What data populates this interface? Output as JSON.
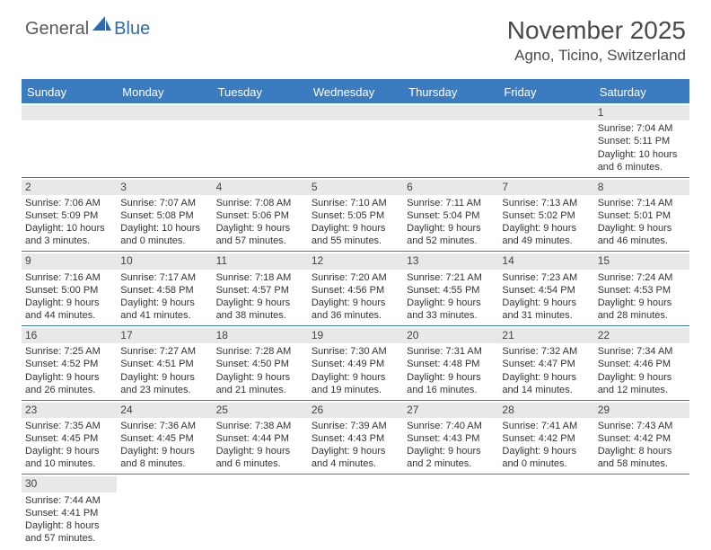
{
  "logo": {
    "part1": "General",
    "part2": "Blue"
  },
  "title": "November 2025",
  "location": "Agno, Ticino, Switzerland",
  "colors": {
    "header_bg": "#3b7bbf",
    "header_text": "#ffffff",
    "datenum_bg": "#e8e8e8",
    "border": "#3b7bbf",
    "body_text": "#333333",
    "title_text": "#4a4a4a",
    "logo_gray": "#5a5a5a",
    "logo_blue": "#2f6aad"
  },
  "day_headers": [
    "Sunday",
    "Monday",
    "Tuesday",
    "Wednesday",
    "Thursday",
    "Friday",
    "Saturday"
  ],
  "weeks": [
    [
      null,
      null,
      null,
      null,
      null,
      null,
      {
        "d": "1",
        "sr": "7:04 AM",
        "ss": "5:11 PM",
        "dl1": "10 hours",
        "dl2": "and 6 minutes."
      }
    ],
    [
      {
        "d": "2",
        "sr": "7:06 AM",
        "ss": "5:09 PM",
        "dl1": "10 hours",
        "dl2": "and 3 minutes."
      },
      {
        "d": "3",
        "sr": "7:07 AM",
        "ss": "5:08 PM",
        "dl1": "10 hours",
        "dl2": "and 0 minutes."
      },
      {
        "d": "4",
        "sr": "7:08 AM",
        "ss": "5:06 PM",
        "dl1": "9 hours",
        "dl2": "and 57 minutes."
      },
      {
        "d": "5",
        "sr": "7:10 AM",
        "ss": "5:05 PM",
        "dl1": "9 hours",
        "dl2": "and 55 minutes."
      },
      {
        "d": "6",
        "sr": "7:11 AM",
        "ss": "5:04 PM",
        "dl1": "9 hours",
        "dl2": "and 52 minutes."
      },
      {
        "d": "7",
        "sr": "7:13 AM",
        "ss": "5:02 PM",
        "dl1": "9 hours",
        "dl2": "and 49 minutes."
      },
      {
        "d": "8",
        "sr": "7:14 AM",
        "ss": "5:01 PM",
        "dl1": "9 hours",
        "dl2": "and 46 minutes."
      }
    ],
    [
      {
        "d": "9",
        "sr": "7:16 AM",
        "ss": "5:00 PM",
        "dl1": "9 hours",
        "dl2": "and 44 minutes."
      },
      {
        "d": "10",
        "sr": "7:17 AM",
        "ss": "4:58 PM",
        "dl1": "9 hours",
        "dl2": "and 41 minutes."
      },
      {
        "d": "11",
        "sr": "7:18 AM",
        "ss": "4:57 PM",
        "dl1": "9 hours",
        "dl2": "and 38 minutes."
      },
      {
        "d": "12",
        "sr": "7:20 AM",
        "ss": "4:56 PM",
        "dl1": "9 hours",
        "dl2": "and 36 minutes."
      },
      {
        "d": "13",
        "sr": "7:21 AM",
        "ss": "4:55 PM",
        "dl1": "9 hours",
        "dl2": "and 33 minutes."
      },
      {
        "d": "14",
        "sr": "7:23 AM",
        "ss": "4:54 PM",
        "dl1": "9 hours",
        "dl2": "and 31 minutes."
      },
      {
        "d": "15",
        "sr": "7:24 AM",
        "ss": "4:53 PM",
        "dl1": "9 hours",
        "dl2": "and 28 minutes."
      }
    ],
    [
      {
        "d": "16",
        "sr": "7:25 AM",
        "ss": "4:52 PM",
        "dl1": "9 hours",
        "dl2": "and 26 minutes."
      },
      {
        "d": "17",
        "sr": "7:27 AM",
        "ss": "4:51 PM",
        "dl1": "9 hours",
        "dl2": "and 23 minutes."
      },
      {
        "d": "18",
        "sr": "7:28 AM",
        "ss": "4:50 PM",
        "dl1": "9 hours",
        "dl2": "and 21 minutes."
      },
      {
        "d": "19",
        "sr": "7:30 AM",
        "ss": "4:49 PM",
        "dl1": "9 hours",
        "dl2": "and 19 minutes."
      },
      {
        "d": "20",
        "sr": "7:31 AM",
        "ss": "4:48 PM",
        "dl1": "9 hours",
        "dl2": "and 16 minutes."
      },
      {
        "d": "21",
        "sr": "7:32 AM",
        "ss": "4:47 PM",
        "dl1": "9 hours",
        "dl2": "and 14 minutes."
      },
      {
        "d": "22",
        "sr": "7:34 AM",
        "ss": "4:46 PM",
        "dl1": "9 hours",
        "dl2": "and 12 minutes."
      }
    ],
    [
      {
        "d": "23",
        "sr": "7:35 AM",
        "ss": "4:45 PM",
        "dl1": "9 hours",
        "dl2": "and 10 minutes."
      },
      {
        "d": "24",
        "sr": "7:36 AM",
        "ss": "4:45 PM",
        "dl1": "9 hours",
        "dl2": "and 8 minutes."
      },
      {
        "d": "25",
        "sr": "7:38 AM",
        "ss": "4:44 PM",
        "dl1": "9 hours",
        "dl2": "and 6 minutes."
      },
      {
        "d": "26",
        "sr": "7:39 AM",
        "ss": "4:43 PM",
        "dl1": "9 hours",
        "dl2": "and 4 minutes."
      },
      {
        "d": "27",
        "sr": "7:40 AM",
        "ss": "4:43 PM",
        "dl1": "9 hours",
        "dl2": "and 2 minutes."
      },
      {
        "d": "28",
        "sr": "7:41 AM",
        "ss": "4:42 PM",
        "dl1": "9 hours",
        "dl2": "and 0 minutes."
      },
      {
        "d": "29",
        "sr": "7:43 AM",
        "ss": "4:42 PM",
        "dl1": "8 hours",
        "dl2": "and 58 minutes."
      }
    ],
    [
      {
        "d": "30",
        "sr": "7:44 AM",
        "ss": "4:41 PM",
        "dl1": "8 hours",
        "dl2": "and 57 minutes."
      },
      null,
      null,
      null,
      null,
      null,
      null
    ]
  ],
  "labels": {
    "sunrise": "Sunrise:",
    "sunset": "Sunset:",
    "daylight": "Daylight:"
  }
}
